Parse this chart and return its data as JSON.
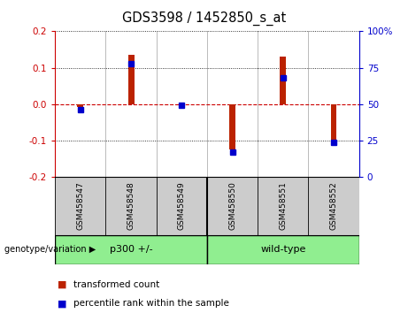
{
  "title": "GDS3598 / 1452850_s_at",
  "samples": [
    "GSM458547",
    "GSM458548",
    "GSM458549",
    "GSM458550",
    "GSM458551",
    "GSM458552"
  ],
  "red_values": [
    -0.008,
    0.135,
    -0.003,
    -0.125,
    0.13,
    -0.1
  ],
  "blue_values_pct": [
    46,
    78,
    49,
    17,
    68,
    24
  ],
  "ylim_left": [
    -0.2,
    0.2
  ],
  "ylim_right": [
    0,
    100
  ],
  "yticks_left": [
    -0.2,
    -0.1,
    0.0,
    0.1,
    0.2
  ],
  "yticks_right": [
    0,
    25,
    50,
    75,
    100
  ],
  "left_tick_color": "#CC0000",
  "right_tick_color": "#0000CC",
  "zero_line_color": "#CC0000",
  "bar_color": "#BB2200",
  "dot_color": "#0000CC",
  "plot_bg": "white",
  "label_bg": "#CCCCCC",
  "group_color": "#90EE90",
  "bar_width": 0.12,
  "group_label_prefix": "genotype/variation"
}
